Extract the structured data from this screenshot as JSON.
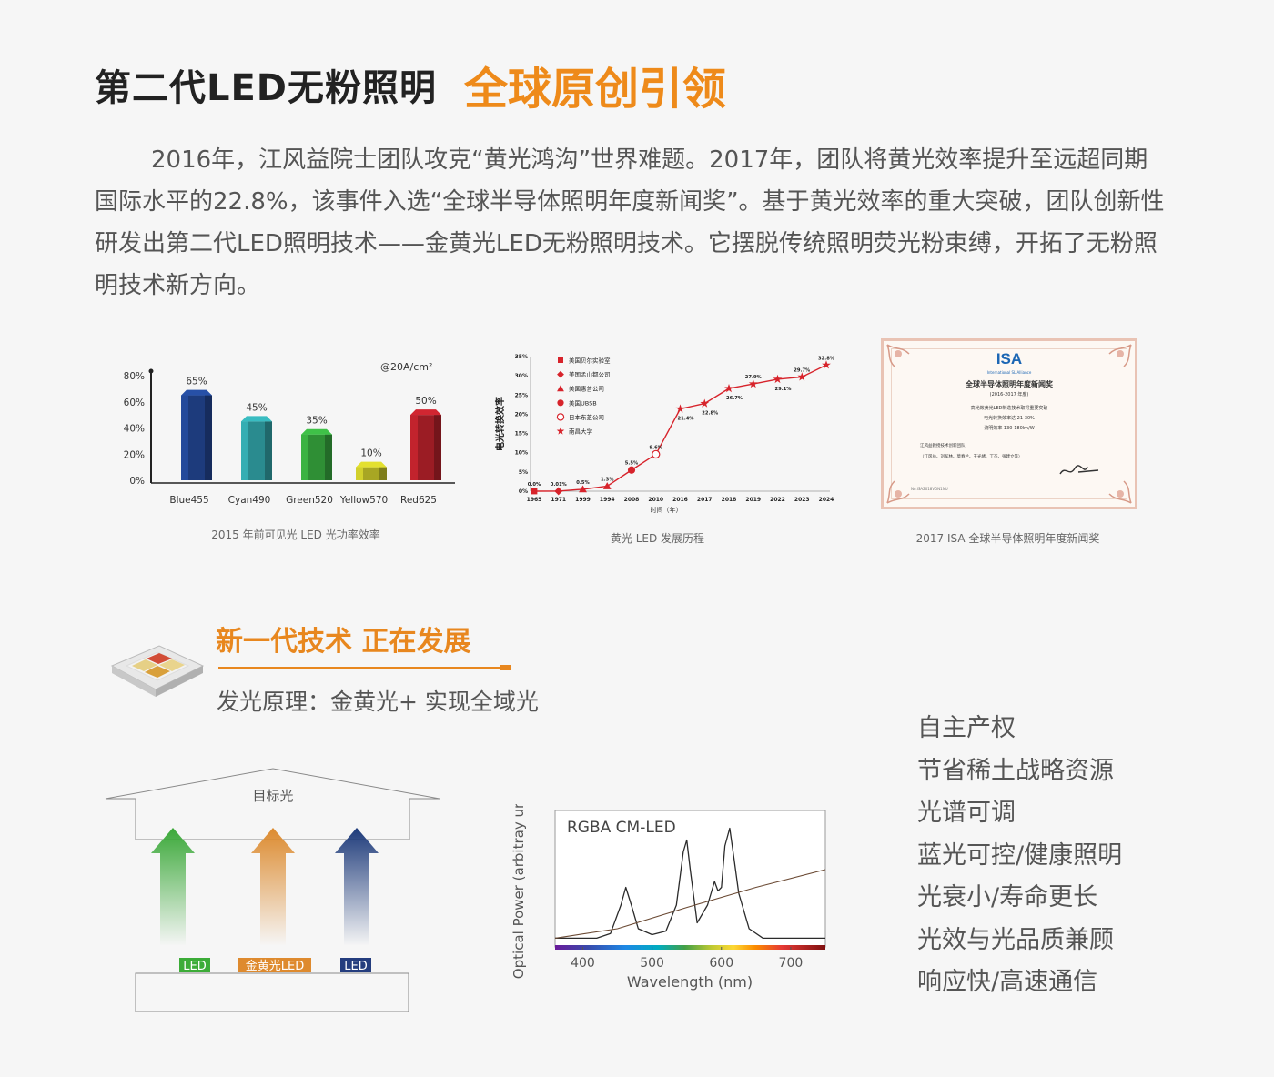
{
  "header": {
    "title_main": "第二代LED无粉照明",
    "title_accent": "全球原创引领"
  },
  "intro": "2016年，江风益院士团队攻克“黄光鸿沟”世界难题。2017年，团队将黄光效率提升至远超同期国际水平的22.8%，该事件入选“全球半导体照明年度新闻奖”。基于黄光效率的重大突破，团队创新性研发出第二代LED照明技术——金黄光LED无粉照明技术。它摆脱传统照明荧光粉束缚，开拓了无粉照明技术新方向。",
  "figures": {
    "bar_caption": "2015 年前可见光 LED 光功率效率",
    "line_caption": "黄光 LED 发展历程",
    "cert_caption": "2017 ISA 全球半导体照明年度新闻奖"
  },
  "chart_data": [
    {
      "type": "bar",
      "annotation": "@20A/cm²",
      "categories": [
        "Blue455",
        "Cyan490",
        "Green520",
        "Yellow570",
        "Red625"
      ],
      "values": [
        65,
        45,
        35,
        10,
        50
      ],
      "value_labels": [
        "65%",
        "45%",
        "35%",
        "10%",
        "50%"
      ],
      "ylim": [
        0,
        80
      ],
      "yticks": [
        "0%",
        "20%",
        "40%",
        "60%",
        "80%"
      ],
      "colors": [
        "#1d3b7c",
        "#2a8b8f",
        "#2f8f35",
        "#a8a623",
        "#9b1c24"
      ]
    },
    {
      "type": "line",
      "ylabel": "电光转换效率",
      "xlabel": "时间（年）",
      "x": [
        "1965",
        "1971",
        "1999",
        "1994",
        "2008",
        "2010",
        "2016",
        "2017",
        "2018",
        "2019",
        "2022",
        "2023",
        "2024"
      ],
      "y": [
        0.0,
        0.01,
        0.5,
        1.3,
        5.5,
        9.6,
        21.4,
        22.8,
        26.7,
        27.9,
        29.1,
        29.7,
        32.8
      ],
      "point_labels": [
        "0.0%",
        "0.01%",
        "0.5%",
        "1.3%",
        "5.5%",
        "9.6%",
        "21.4%",
        "22.8%",
        "26.7%",
        "27.9%",
        "29.1%",
        "29.7%",
        "32.8%"
      ],
      "markers": [
        "square",
        "diamond",
        "triangle",
        "triangle",
        "circle",
        "open-circle",
        "star",
        "star",
        "star",
        "star",
        "star",
        "star",
        "star"
      ],
      "ylim": [
        0,
        35
      ],
      "yticks": [
        "0%",
        "5%",
        "10%",
        "15%",
        "20%",
        "25%",
        "30%",
        "35%"
      ],
      "legend": [
        "美国贝尔实验室",
        "美国孟山都公司",
        "美国惠普公司",
        "美国UBSB",
        "日本东芝公司",
        "南昌大学"
      ],
      "legend_markers": [
        "square",
        "diamond",
        "triangle",
        "circle",
        "open-circle",
        "star"
      ],
      "color": "#d7232b"
    },
    {
      "type": "line",
      "title": "RGBA CM-LED",
      "ylabel": "Optical Power (arbitray units)",
      "xlabel": "Wavelength (nm)",
      "xticks": [
        400,
        500,
        600,
        700
      ],
      "xlim": [
        360,
        750
      ],
      "series": [
        {
          "x": [
            360,
            420,
            440,
            455,
            462,
            470,
            480,
            500,
            520,
            535,
            545,
            550,
            555,
            565,
            580,
            590,
            595,
            600,
            605,
            612,
            618,
            625,
            640,
            660,
            750
          ],
          "values": [
            0.02,
            0.02,
            0.06,
            0.3,
            0.45,
            0.3,
            0.1,
            0.05,
            0.08,
            0.3,
            0.75,
            0.85,
            0.6,
            0.15,
            0.3,
            0.5,
            0.42,
            0.45,
            0.8,
            0.95,
            0.7,
            0.4,
            0.1,
            0.02,
            0.02
          ]
        },
        {
          "x": [
            360,
            450,
            550,
            650,
            750
          ],
          "values": [
            0.02,
            0.1,
            0.28,
            0.45,
            0.6
          ]
        }
      ]
    }
  ],
  "certificate": {
    "logo": "ISA",
    "org": "International SL Alliance",
    "title": "全球半导体照明年度新闻奖",
    "years": "(2016-2017 年度)",
    "lines": [
      "高光效黄光LED制造技术取得重要突破",
      "电光转换效率达 21-30%",
      "流明效率 130-180lm/W"
    ],
    "team": "江风益教授技术创新团队",
    "members": "（江风益、刘军林、莫春兰、王光绪、丁杰、张建立等）",
    "number": "No.ISA2018VON1NU"
  },
  "feature": {
    "title": "新一代技术 正在发展",
    "subtitle": "发光原理：金黄光+ 实现全域光"
  },
  "diagram": {
    "target": "目标光",
    "labels": [
      "LED",
      "金黄光LED",
      "LED"
    ],
    "label_colors": [
      "#3cac38",
      "#de8a2e",
      "#243d7e"
    ]
  },
  "benefits": [
    "自主产权",
    "节省稀土战略资源",
    "光谱可调",
    "蓝光可控/健康照明",
    "光衰小/寿命更长",
    "光效与光品质兼顾",
    "响应快/高速通信"
  ]
}
